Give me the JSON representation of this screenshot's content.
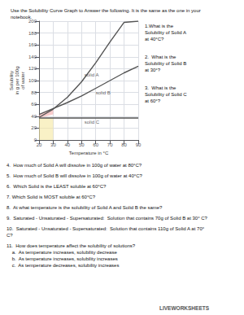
{
  "chart_data": {
    "type": "line",
    "title": "Use the Solubility Curve Graph to Answer the following. It is the same as the one in your\nnotebook.",
    "xlabel": "Temperature in °C",
    "ylabel": "Solubility\nin g per 100g\nof water",
    "xlim": [
      20,
      90
    ],
    "ylim": [
      0,
      200
    ],
    "xticks": [
      20,
      30,
      40,
      50,
      60,
      70,
      80,
      90
    ],
    "yticks": [
      0,
      20,
      40,
      60,
      80,
      100,
      120,
      140,
      160,
      180,
      200
    ],
    "grid": true,
    "series": [
      {
        "x": [
          20,
          30,
          40,
          50,
          60,
          70,
          80,
          90
        ],
        "values": [
          38,
          52,
          72,
          98,
          130,
          165,
          198,
          200
        ],
        "color": "#555555"
      },
      {
        "x": [
          20,
          30,
          40,
          50,
          60,
          70,
          80,
          90
        ],
        "values": [
          43,
          53,
          63,
          74,
          87,
          100,
          113,
          124
        ],
        "color": "#555555"
      },
      {
        "x": [
          20,
          90
        ],
        "values": [
          37,
          37
        ],
        "color": "#555555"
      }
    ],
    "areas": [
      {
        "x": [
          20,
          30
        ],
        "lo": [
          37,
          43
        ],
        "hi": [
          43,
          53
        ],
        "color": "#f5aaaa"
      },
      {
        "x": [
          20,
          30
        ],
        "lo": [
          0,
          0
        ],
        "hi": [
          37,
          37
        ],
        "color": "#f5e8a0"
      }
    ],
    "annotations": [
      {
        "text": "solid A",
        "x": 52,
        "y": 110
      },
      {
        "text": "solid B",
        "x": 60,
        "y": 79
      },
      {
        "text": "solid C",
        "x": 52,
        "y": 30
      }
    ],
    "questions_right": [
      "1.What is the\nSolubility of Solid A\nat 40°C?",
      "2.  What is the\nSolubility of Solid B\nat 30°?",
      "3.  What is the\nSolubility of Solid C\nat 60°?"
    ],
    "questions_below": [
      "4.  How much of Solid A will dissolve in 100g of water at 80°C?",
      "5.  How much of Solid B will dissolve in 100g of water at 40°C?",
      "6.  Which Solid is the LEAST soluble at 60°C?",
      "7. Which Solid is MOST soluble at 60°C?",
      "8.  At what temperature is the solubility of Solid A and Solid B the same?",
      "9.  Saturated - Unsaturated - Supersaturated:  Solution that contains 70g of Solid B at 30° C?",
      "10.  Saturated - Unsaturated - Supersaturated:  Solution that contains 110g of Solid A at 70°\nC?",
      "11.  How does temperature affect the solubility of solutions?\n    a.  As temperature increases, solubility decrease\n    b.  As temperature increases, solubility increases\n    c.  As temperature decreases, solubility increases"
    ],
    "footer": "LIVEWORKSHEETS"
  }
}
